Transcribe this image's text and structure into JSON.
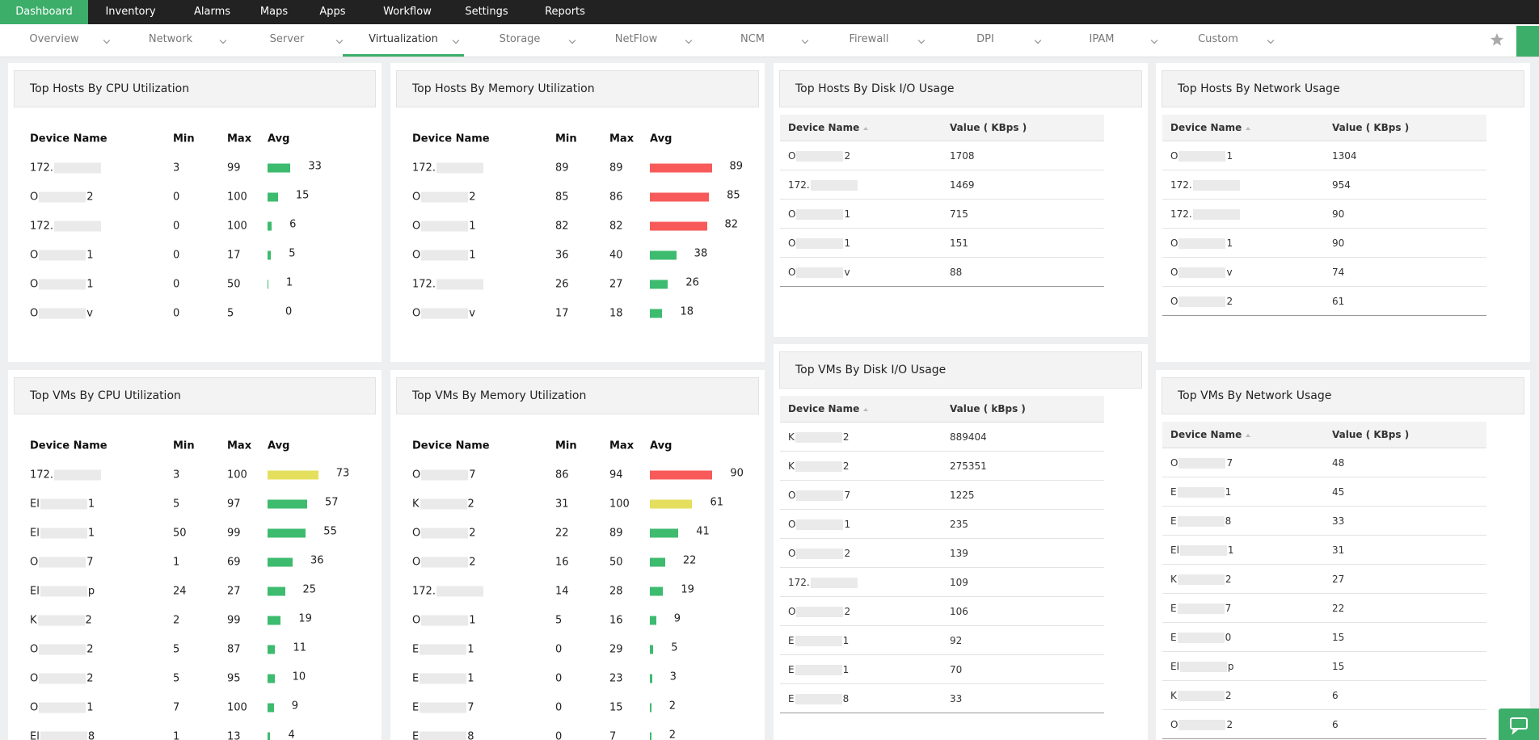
{
  "nav": {
    "tabs": [
      "Dashboard",
      "Inventory",
      "Alarms",
      "Maps",
      "Apps",
      "Workflow",
      "Settings",
      "Reports"
    ],
    "active": 0
  },
  "subnav": {
    "items": [
      "Overview",
      "Network",
      "Server",
      "Virtualization",
      "Storage",
      "NetFlow",
      "NCM",
      "Firewall",
      "DPI",
      "IPAM",
      "Custom"
    ],
    "active": 3
  },
  "widgets": [
    {
      "title": "Top Hosts By CPU Utilization",
      "kind": "bars",
      "columns": [
        "Device Name",
        "Min",
        "Max",
        "Avg"
      ],
      "rows": [
        {
          "name": [
            "172.",
            ""
          ],
          "min": 3,
          "max": 99,
          "avg": 33,
          "color": "#3dbb6e"
        },
        {
          "name": [
            "O",
            "2"
          ],
          "min": 0,
          "max": 100,
          "avg": 15,
          "color": "#3dbb6e"
        },
        {
          "name": [
            "172.",
            ""
          ],
          "min": 0,
          "max": 100,
          "avg": 6,
          "color": "#3dbb6e"
        },
        {
          "name": [
            "O",
            "1"
          ],
          "min": 0,
          "max": 17,
          "avg": 5,
          "color": "#3dbb6e"
        },
        {
          "name": [
            "O",
            "1"
          ],
          "min": 0,
          "max": 50,
          "avg": 1,
          "color": "#3dbb6e"
        },
        {
          "name": [
            "O",
            "v"
          ],
          "min": 0,
          "max": 5,
          "avg": 0,
          "color": "#3dbb6e"
        }
      ]
    },
    {
      "title": "Top Hosts By Memory Utilization",
      "kind": "bars",
      "columns": [
        "Device Name",
        "Min",
        "Max",
        "Avg"
      ],
      "rows": [
        {
          "name": [
            "172.",
            ""
          ],
          "min": 89,
          "max": 89,
          "avg": 89,
          "color": "#f85a5a"
        },
        {
          "name": [
            "O",
            "2"
          ],
          "min": 85,
          "max": 86,
          "avg": 85,
          "color": "#f85a5a"
        },
        {
          "name": [
            "O",
            "1"
          ],
          "min": 82,
          "max": 82,
          "avg": 82,
          "color": "#f85a5a"
        },
        {
          "name": [
            "O",
            "1"
          ],
          "min": 36,
          "max": 40,
          "avg": 38,
          "color": "#3dbb6e"
        },
        {
          "name": [
            "172.",
            ""
          ],
          "min": 26,
          "max": 27,
          "avg": 26,
          "color": "#3dbb6e"
        },
        {
          "name": [
            "O",
            "v"
          ],
          "min": 17,
          "max": 18,
          "avg": 18,
          "color": "#3dbb6e"
        }
      ]
    },
    {
      "title": "Top Hosts By Disk I/O Usage",
      "kind": "table",
      "columns": [
        "Device Name",
        "Value ( KBps )"
      ],
      "rows": [
        {
          "name": [
            "O",
            "2"
          ],
          "value": 1708
        },
        {
          "name": [
            "172.",
            ""
          ],
          "value": 1469
        },
        {
          "name": [
            "O",
            "1"
          ],
          "value": 715
        },
        {
          "name": [
            "O",
            "1"
          ],
          "value": 151
        },
        {
          "name": [
            "O",
            "v"
          ],
          "value": 88
        }
      ]
    },
    {
      "title": "Top Hosts By Network Usage",
      "kind": "table",
      "columns": [
        "Device Name",
        "Value ( KBps )"
      ],
      "rows": [
        {
          "name": [
            "O",
            "1"
          ],
          "value": 1304
        },
        {
          "name": [
            "172.",
            ""
          ],
          "value": 954
        },
        {
          "name": [
            "172.",
            ""
          ],
          "value": 90
        },
        {
          "name": [
            "O",
            "1"
          ],
          "value": 90
        },
        {
          "name": [
            "O",
            "v"
          ],
          "value": 74
        },
        {
          "name": [
            "O",
            "2"
          ],
          "value": 61
        }
      ]
    },
    {
      "title": "Top VMs By CPU Utilization",
      "kind": "bars",
      "columns": [
        "Device Name",
        "Min",
        "Max",
        "Avg"
      ],
      "rows": [
        {
          "name": [
            "172.",
            ""
          ],
          "min": 3,
          "max": 100,
          "avg": 73,
          "color": "#e5df5e"
        },
        {
          "name": [
            "El",
            "1"
          ],
          "min": 5,
          "max": 97,
          "avg": 57,
          "color": "#3dbb6e"
        },
        {
          "name": [
            "El",
            "1"
          ],
          "min": 50,
          "max": 99,
          "avg": 55,
          "color": "#3dbb6e"
        },
        {
          "name": [
            "O",
            "7"
          ],
          "min": 1,
          "max": 69,
          "avg": 36,
          "color": "#3dbb6e"
        },
        {
          "name": [
            "El",
            "p"
          ],
          "min": 24,
          "max": 27,
          "avg": 25,
          "color": "#3dbb6e"
        },
        {
          "name": [
            "K",
            "2"
          ],
          "min": 2,
          "max": 99,
          "avg": 19,
          "color": "#3dbb6e"
        },
        {
          "name": [
            "O",
            "2"
          ],
          "min": 5,
          "max": 87,
          "avg": 11,
          "color": "#3dbb6e"
        },
        {
          "name": [
            "O",
            "2"
          ],
          "min": 5,
          "max": 95,
          "avg": 10,
          "color": "#3dbb6e"
        },
        {
          "name": [
            "O",
            "1"
          ],
          "min": 7,
          "max": 100,
          "avg": 9,
          "color": "#3dbb6e"
        },
        {
          "name": [
            "El",
            "8"
          ],
          "min": 1,
          "max": 13,
          "avg": 4,
          "color": "#3dbb6e"
        }
      ]
    },
    {
      "title": "Top VMs By Memory Utilization",
      "kind": "bars",
      "columns": [
        "Device Name",
        "Min",
        "Max",
        "Avg"
      ],
      "rows": [
        {
          "name": [
            "O",
            "7"
          ],
          "min": 86,
          "max": 94,
          "avg": 90,
          "color": "#f85a5a"
        },
        {
          "name": [
            "K",
            "2"
          ],
          "min": 31,
          "max": 100,
          "avg": 61,
          "color": "#e5df5e"
        },
        {
          "name": [
            "O",
            "2"
          ],
          "min": 22,
          "max": 89,
          "avg": 41,
          "color": "#3dbb6e"
        },
        {
          "name": [
            "O",
            "2"
          ],
          "min": 16,
          "max": 50,
          "avg": 22,
          "color": "#3dbb6e"
        },
        {
          "name": [
            "172.",
            ""
          ],
          "min": 14,
          "max": 28,
          "avg": 19,
          "color": "#3dbb6e"
        },
        {
          "name": [
            "O",
            "1"
          ],
          "min": 5,
          "max": 16,
          "avg": 9,
          "color": "#3dbb6e"
        },
        {
          "name": [
            "E",
            "1"
          ],
          "min": 0,
          "max": 29,
          "avg": 5,
          "color": "#3dbb6e"
        },
        {
          "name": [
            "E",
            "1"
          ],
          "min": 0,
          "max": 23,
          "avg": 3,
          "color": "#3dbb6e"
        },
        {
          "name": [
            "E",
            "7"
          ],
          "min": 0,
          "max": 15,
          "avg": 2,
          "color": "#3dbb6e"
        },
        {
          "name": [
            "E",
            "8"
          ],
          "min": 0,
          "max": 7,
          "avg": 2,
          "color": "#3dbb6e"
        }
      ]
    },
    {
      "title": "Top VMs By Disk I/O Usage",
      "kind": "table",
      "columns": [
        "Device Name",
        "Value ( kBps )"
      ],
      "rows": [
        {
          "name": [
            "K",
            "2"
          ],
          "value": 889404
        },
        {
          "name": [
            "K",
            "2"
          ],
          "value": 275351
        },
        {
          "name": [
            "O",
            "7"
          ],
          "value": 1225
        },
        {
          "name": [
            "O",
            "1"
          ],
          "value": 235
        },
        {
          "name": [
            "O",
            "2"
          ],
          "value": 139
        },
        {
          "name": [
            "172.",
            ""
          ],
          "value": 109
        },
        {
          "name": [
            "O",
            "2"
          ],
          "value": 106
        },
        {
          "name": [
            "E",
            "1"
          ],
          "value": 92
        },
        {
          "name": [
            "E",
            "1"
          ],
          "value": 70
        },
        {
          "name": [
            "E",
            "8"
          ],
          "value": 33
        }
      ]
    },
    {
      "title": "Top VMs By Network Usage",
      "kind": "table",
      "columns": [
        "Device Name",
        "Value ( KBps )"
      ],
      "rows": [
        {
          "name": [
            "O",
            "7"
          ],
          "value": 48
        },
        {
          "name": [
            "E",
            "1"
          ],
          "value": 45
        },
        {
          "name": [
            "E",
            "8"
          ],
          "value": 33
        },
        {
          "name": [
            "El",
            "1"
          ],
          "value": 31
        },
        {
          "name": [
            "K",
            "2"
          ],
          "value": 27
        },
        {
          "name": [
            "E",
            "7"
          ],
          "value": 22
        },
        {
          "name": [
            "E",
            "0"
          ],
          "value": 15
        },
        {
          "name": [
            "El",
            "p"
          ],
          "value": 15
        },
        {
          "name": [
            "K",
            "2"
          ],
          "value": 6
        },
        {
          "name": [
            "O",
            "2"
          ],
          "value": 6
        }
      ]
    }
  ]
}
